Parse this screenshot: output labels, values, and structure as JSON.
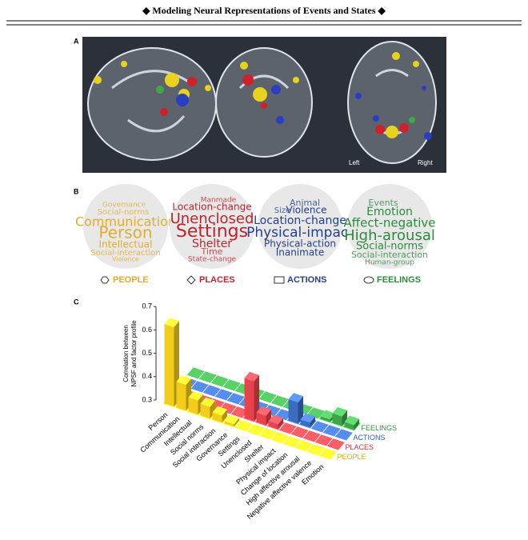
{
  "header": {
    "title": "◆ Modeling Neural Representations of Events and States ◆"
  },
  "panel_a": {
    "label": "A",
    "left_label": "Left",
    "right_label": "Right"
  },
  "panel_b": {
    "label": "B",
    "clouds": [
      {
        "name": "PEOPLE",
        "color": "#e2ac2c",
        "words": [
          "Governance",
          "Social-norms",
          "Communication",
          "Person",
          "Intellectual",
          "Social-interaction",
          "Violence"
        ]
      },
      {
        "name": "PLACES",
        "color": "#c0242d",
        "words": [
          "Manmade",
          "Location-change",
          "Unenclosed",
          "Settings",
          "Shelter",
          "Time",
          "State-change"
        ]
      },
      {
        "name": "ACTIONS",
        "color": "#243f8c",
        "words": [
          "Animal",
          "Size",
          "Violence",
          "Location-change",
          "Physical-impact",
          "Physical-action",
          "Inanimate"
        ]
      },
      {
        "name": "FEELINGS",
        "color": "#2c8a3c",
        "words": [
          "Events",
          "Emotion",
          "Affect-negative",
          "High-arousal",
          "Social-norms",
          "Social-interaction",
          "Human-group"
        ]
      }
    ]
  },
  "chart_data": {
    "type": "bar3d",
    "panel_label": "C",
    "ylabel": [
      "Correlation between",
      "NPSF and factor profile"
    ],
    "categories": [
      "Person",
      "Communication",
      "Intellectual",
      "Social norms",
      "Social interaction",
      "Governance",
      "Settings",
      "Unenclosed",
      "Shelter",
      "Physical impact",
      "Change of location",
      "High affective arousal",
      "Negative affective valence",
      "Emotion"
    ],
    "ylim": [
      0.3,
      0.7
    ],
    "yticks": [
      0.3,
      0.4,
      0.5,
      0.6,
      0.7
    ],
    "series": [
      {
        "name": "PEOPLE",
        "color": "#f3cd1c",
        "values": [
          0.64,
          0.41,
          0.36,
          0.35,
          0.33,
          0.31,
          null,
          null,
          null,
          null,
          null,
          null,
          null,
          null
        ]
      },
      {
        "name": "PLACES",
        "color": "#e8424c",
        "values": [
          null,
          null,
          null,
          null,
          null,
          null,
          0.47,
          0.34,
          0.32,
          null,
          null,
          null,
          null,
          null
        ]
      },
      {
        "name": "ACTIONS",
        "color": "#3a6cc0",
        "values": [
          null,
          null,
          null,
          null,
          null,
          null,
          null,
          null,
          null,
          0.39,
          0.32,
          null,
          null,
          null
        ]
      },
      {
        "name": "FEELINGS",
        "color": "#3da64a",
        "values": [
          null,
          null,
          null,
          null,
          null,
          null,
          null,
          null,
          null,
          null,
          null,
          0.31,
          0.34,
          0.32
        ]
      }
    ]
  }
}
